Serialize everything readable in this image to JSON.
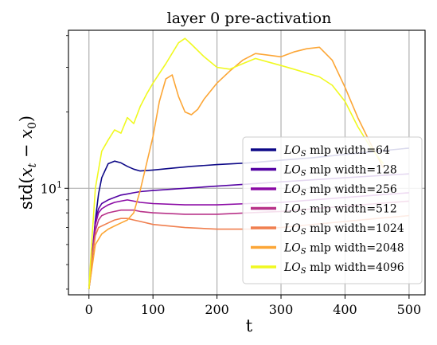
{
  "chart_data": {
    "type": "line",
    "title": "layer 0 pre-activation",
    "xlabel": "t",
    "ylabel": "std(x_t − x_0)",
    "xlim": [
      -32,
      525
    ],
    "ylim": [
      3.8,
      42
    ],
    "yscale": "log",
    "grid": true,
    "legend_position": "lower-right",
    "x_ticks": [
      0,
      100,
      200,
      300,
      400,
      500
    ],
    "y_ticks": [
      {
        "value": 10,
        "label_base": "10",
        "label_exp": "1"
      }
    ],
    "legend_label_prefix": "LO",
    "legend_label_sub": "S",
    "series": [
      {
        "name": " mlp width=64",
        "color": "#0d0887",
        "x": [
          0,
          5,
          10,
          15,
          20,
          30,
          40,
          50,
          60,
          70,
          80,
          100,
          130,
          160,
          200,
          250,
          300,
          350,
          400,
          450,
          500
        ],
        "y": [
          4.0,
          5.0,
          7.5,
          9.5,
          11.0,
          12.5,
          12.8,
          12.6,
          12.2,
          11.9,
          11.7,
          11.8,
          12.0,
          12.2,
          12.4,
          12.6,
          12.9,
          13.2,
          13.6,
          14.0,
          14.4
        ]
      },
      {
        "name": " mlp width=128",
        "color": "#5302a3",
        "x": [
          0,
          5,
          10,
          15,
          20,
          30,
          40,
          50,
          60,
          70,
          80,
          100,
          150,
          200,
          250,
          300,
          350,
          400,
          450,
          500
        ],
        "y": [
          4.0,
          5.5,
          7.5,
          8.3,
          8.7,
          9.0,
          9.2,
          9.4,
          9.5,
          9.6,
          9.7,
          9.8,
          10.0,
          10.2,
          10.4,
          10.6,
          10.8,
          11.0,
          11.2,
          11.4
        ]
      },
      {
        "name": " mlp width=256",
        "color": "#8b0aa5",
        "x": [
          0,
          5,
          10,
          15,
          20,
          30,
          40,
          50,
          60,
          70,
          80,
          100,
          150,
          200,
          250,
          300,
          350,
          400,
          450,
          500
        ],
        "y": [
          4.0,
          5.5,
          7.2,
          8.0,
          8.3,
          8.6,
          8.8,
          8.9,
          9.0,
          8.9,
          8.8,
          8.7,
          8.6,
          8.6,
          8.7,
          8.8,
          9.0,
          9.2,
          9.4,
          9.6
        ]
      },
      {
        "name": " mlp width=512",
        "color": "#b83289",
        "x": [
          0,
          5,
          10,
          15,
          20,
          30,
          40,
          50,
          60,
          70,
          80,
          100,
          150,
          200,
          250,
          300,
          350,
          400,
          450,
          500
        ],
        "y": [
          4.0,
          5.4,
          6.8,
          7.5,
          7.8,
          8.0,
          8.1,
          8.2,
          8.2,
          8.2,
          8.1,
          8.0,
          7.9,
          7.9,
          8.0,
          8.1,
          8.3,
          8.5,
          8.7,
          8.9
        ]
      },
      {
        "name": " mlp width=1024",
        "color": "#f07f4f",
        "x": [
          0,
          5,
          10,
          15,
          20,
          30,
          40,
          50,
          60,
          70,
          80,
          100,
          150,
          200,
          250,
          300,
          350,
          400,
          450,
          500
        ],
        "y": [
          4.0,
          5.3,
          6.5,
          7.0,
          7.1,
          7.3,
          7.5,
          7.6,
          7.6,
          7.5,
          7.4,
          7.2,
          7.0,
          6.9,
          6.9,
          7.0,
          7.2,
          7.4,
          7.6,
          7.8
        ]
      },
      {
        "name": " mlp width=2048",
        "color": "#fca636",
        "x": [
          0,
          10,
          20,
          30,
          40,
          50,
          60,
          70,
          80,
          90,
          100,
          110,
          120,
          130,
          140,
          150,
          160,
          170,
          180,
          200,
          220,
          240,
          260,
          280,
          300,
          320,
          340,
          360,
          380,
          400,
          420,
          440,
          460
        ],
        "y": [
          4.0,
          6.0,
          6.6,
          6.9,
          7.1,
          7.3,
          7.5,
          8.0,
          9.8,
          12.5,
          16.0,
          22.0,
          27.0,
          28.0,
          23.0,
          20.0,
          19.5,
          20.5,
          22.5,
          26.0,
          29.0,
          32.0,
          34.0,
          33.5,
          33.0,
          34.5,
          35.5,
          36.0,
          32.0,
          25.0,
          19.0,
          15.0,
          12.0
        ]
      },
      {
        "name": " mlp width=4096",
        "color": "#f0f921",
        "x": [
          0,
          5,
          10,
          20,
          30,
          40,
          50,
          60,
          70,
          80,
          90,
          100,
          120,
          140,
          150,
          160,
          180,
          200,
          220,
          240,
          260,
          280,
          300,
          320,
          340,
          360,
          380,
          400,
          420,
          440,
          460
        ],
        "y": [
          4.0,
          6.5,
          10.0,
          14.0,
          15.5,
          17.0,
          16.5,
          19.0,
          18.0,
          21.0,
          23.5,
          26.0,
          31.0,
          37.5,
          39.0,
          37.0,
          33.0,
          30.0,
          29.5,
          31.0,
          32.5,
          31.5,
          30.5,
          29.5,
          28.5,
          27.5,
          25.5,
          22.0,
          17.5,
          14.5,
          12.5
        ]
      }
    ]
  }
}
